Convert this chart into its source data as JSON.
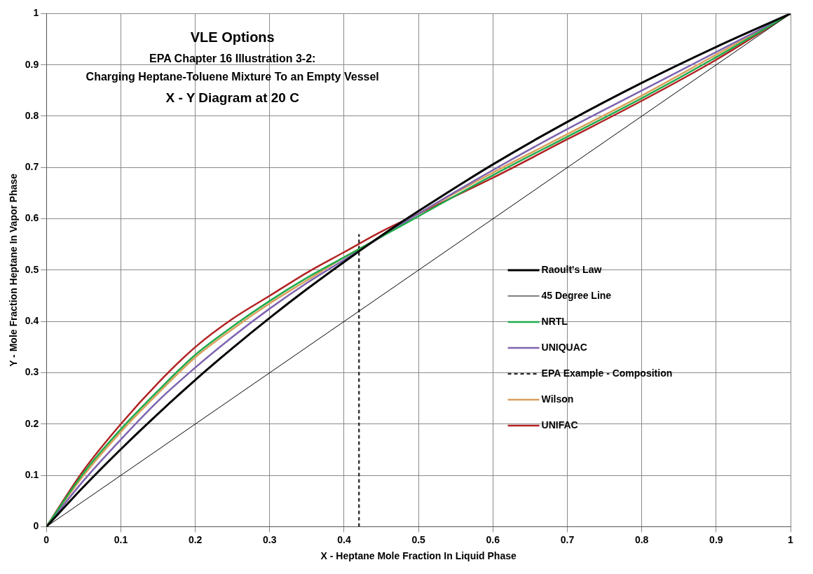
{
  "chart_data": {
    "type": "line",
    "title": "VLE Options",
    "subtitle": "EPA Chapter 16 Illustration 3-2:\nCharging Heptane-Toluene Mixture To an Empty Vessel\nX - Y Diagram at 20 C",
    "xlabel": "X - Heptane Mole Fraction In Liquid Phase",
    "ylabel": "Y - Mole Fraction Heptane In Vapor Phase",
    "x": [
      0,
      0.05,
      0.1,
      0.15,
      0.2,
      0.25,
      0.3,
      0.35,
      0.4,
      0.45,
      0.5,
      0.6,
      0.7,
      0.8,
      0.9,
      1
    ],
    "series": [
      {
        "name": "Raoult's Law",
        "color": "#000000",
        "values": [
          0,
          0.078,
          0.151,
          0.22,
          0.286,
          0.348,
          0.407,
          0.463,
          0.516,
          0.567,
          0.615,
          0.706,
          0.789,
          0.865,
          0.935,
          1
        ]
      },
      {
        "name": "45 Degree Line",
        "color": "#000000",
        "x": [
          0,
          1
        ],
        "values": [
          0,
          1
        ]
      },
      {
        "name": "NRTL",
        "color": "#1faa4b",
        "values": [
          0,
          0.105,
          0.19,
          0.265,
          0.335,
          0.39,
          0.44,
          0.485,
          0.525,
          0.565,
          0.605,
          0.685,
          0.76,
          0.835,
          0.915,
          1
        ]
      },
      {
        "name": "UNIQUAC",
        "color": "#7d63b0",
        "values": [
          0,
          0.09,
          0.17,
          0.245,
          0.31,
          0.37,
          0.425,
          0.475,
          0.52,
          0.565,
          0.61,
          0.695,
          0.775,
          0.85,
          0.925,
          1
        ]
      },
      {
        "name": "EPA Example - Composition",
        "color": "#333333",
        "x": [
          0.42,
          0.42
        ],
        "values": [
          0,
          0.57
        ],
        "line_style": "dashed"
      },
      {
        "name": "Wilson",
        "color": "#d9a05b",
        "values": [
          0,
          0.1,
          0.185,
          0.26,
          0.33,
          0.385,
          0.435,
          0.48,
          0.525,
          0.565,
          0.61,
          0.69,
          0.765,
          0.84,
          0.92,
          1
        ]
      },
      {
        "name": "UNIFAC",
        "color": "#b22222",
        "values": [
          0,
          0.11,
          0.2,
          0.28,
          0.35,
          0.405,
          0.45,
          0.495,
          0.535,
          0.575,
          0.61,
          0.68,
          0.755,
          0.83,
          0.91,
          1
        ]
      }
    ],
    "xlim": [
      0,
      1
    ],
    "ylim": [
      0,
      1
    ],
    "xticks": [
      0,
      0.1,
      0.2,
      0.3,
      0.4,
      0.5,
      0.6,
      0.7,
      0.8,
      0.9,
      1
    ],
    "yticks": [
      0,
      0.1,
      0.2,
      0.3,
      0.4,
      0.5,
      0.6,
      0.7,
      0.8,
      0.9,
      1
    ],
    "grid": true,
    "legend": "right",
    "marker": "none",
    "line_style": "solid"
  }
}
